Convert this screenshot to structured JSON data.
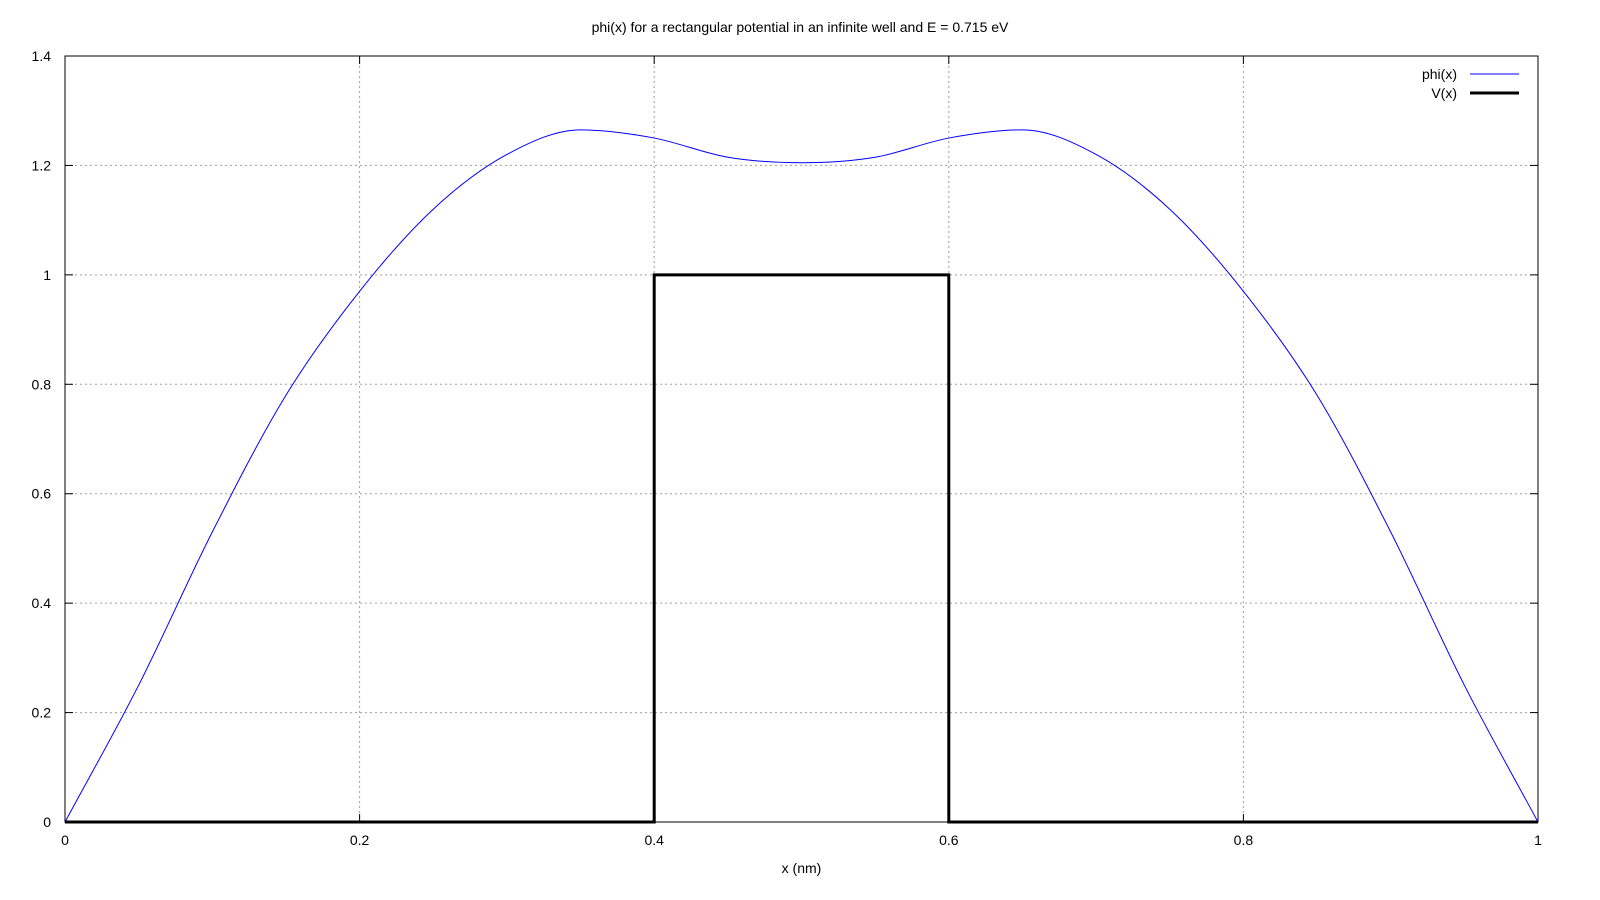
{
  "chart_data": {
    "type": "line",
    "title": "phi(x) for a rectangular potential in an infinite well and E = 0.715 eV",
    "xlabel": "x (nm)",
    "ylabel": "",
    "xlim": [
      0,
      1
    ],
    "ylim": [
      0,
      1.4
    ],
    "xticks": [
      0,
      0.2,
      0.4,
      0.6,
      0.8,
      1
    ],
    "yticks": [
      0,
      0.2,
      0.4,
      0.6,
      0.8,
      1,
      1.2,
      1.4
    ],
    "xtick_labels": [
      "0",
      "0.2",
      "0.4",
      "0.6",
      "0.8",
      "1"
    ],
    "ytick_labels": [
      "0",
      "0.2",
      "0.4",
      "0.6",
      "0.8",
      "1",
      "1.2",
      "1.4"
    ],
    "grid": true,
    "legend_position": "top-right",
    "series": [
      {
        "name": "phi(x)",
        "color": "#0000ff",
        "x": [
          0,
          0.05,
          0.1,
          0.15,
          0.2,
          0.25,
          0.3,
          0.35,
          0.4,
          0.45,
          0.5,
          0.55,
          0.6,
          0.65,
          0.7,
          0.75,
          0.8,
          0.85,
          0.9,
          0.95,
          1
        ],
        "y": [
          0,
          0.25,
          0.53,
          0.78,
          0.97,
          1.12,
          1.22,
          1.265,
          1.25,
          1.215,
          1.205,
          1.215,
          1.25,
          1.265,
          1.22,
          1.12,
          0.97,
          0.78,
          0.53,
          0.25,
          0
        ]
      },
      {
        "name": "V(x)",
        "color": "#000000",
        "x": [
          0,
          0.4,
          0.4,
          0.6,
          0.6,
          1
        ],
        "y": [
          0,
          0,
          1,
          1,
          0,
          0
        ]
      }
    ]
  }
}
